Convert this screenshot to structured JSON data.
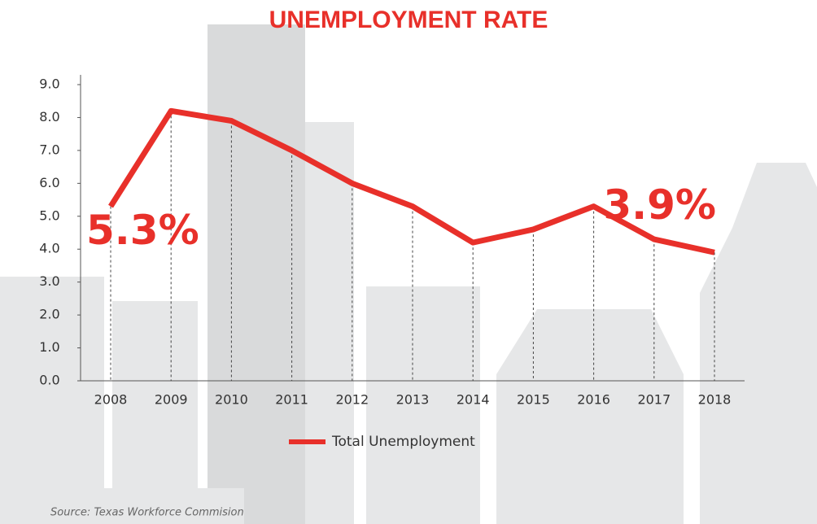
{
  "chart_data": {
    "type": "line",
    "title": "UNEMPLOYMENT RATE",
    "categories": [
      "2008",
      "2009",
      "2010",
      "2011",
      "2012",
      "2013",
      "2014",
      "2015",
      "2016",
      "2017",
      "2018"
    ],
    "series": [
      {
        "name": "Total Unemployment",
        "color": "#e8302a",
        "values": [
          5.3,
          8.2,
          7.9,
          7.0,
          6.0,
          5.3,
          4.2,
          4.6,
          5.3,
          4.3,
          3.9
        ],
        "value_labels": [
          "5.3%",
          null,
          null,
          null,
          null,
          null,
          null,
          null,
          null,
          null,
          "3.9%"
        ]
      }
    ],
    "ylim": [
      0,
      9
    ],
    "yticks": [
      {
        "value": 0,
        "label": "0.0"
      },
      {
        "value": 1,
        "label": "1.0"
      },
      {
        "value": 2,
        "label": "2.0"
      },
      {
        "value": 3,
        "label": "3.0"
      },
      {
        "value": 4,
        "label": "4.0"
      },
      {
        "value": 5,
        "label": "5.0"
      },
      {
        "value": 6,
        "label": "6.0"
      },
      {
        "value": 7,
        "label": "7.0"
      },
      {
        "value": 8,
        "label": "8.0"
      },
      {
        "value": 9,
        "label": "9.0"
      }
    ],
    "source": "Source: Texas Workforce Commision"
  }
}
